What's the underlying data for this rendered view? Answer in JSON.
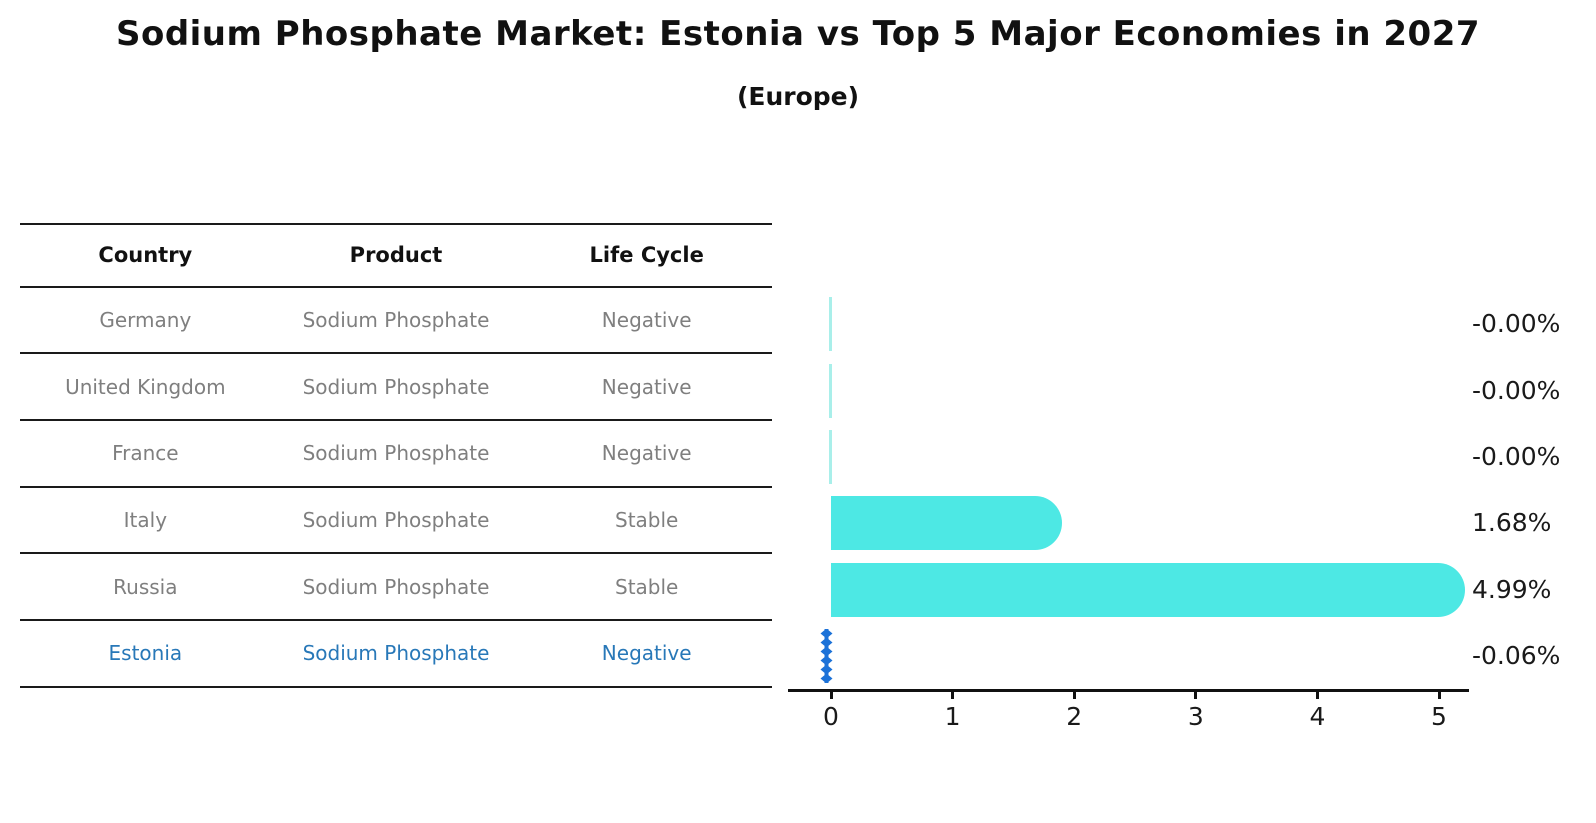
{
  "title": "Sodium Phosphate Market: Estonia vs Top 5 Major Economies in 2027",
  "subtitle": "(Europe)",
  "table": {
    "headers": [
      "Country",
      "Product",
      "Life Cycle"
    ],
    "rows": [
      {
        "country": "Germany",
        "product": "Sodium Phosphate",
        "life_cycle": "Negative",
        "highlight": false
      },
      {
        "country": "United Kingdom",
        "product": "Sodium Phosphate",
        "life_cycle": "Negative",
        "highlight": false
      },
      {
        "country": "France",
        "product": "Sodium Phosphate",
        "life_cycle": "Negative",
        "highlight": false
      },
      {
        "country": "Italy",
        "product": "Sodium Phosphate",
        "life_cycle": "Stable",
        "highlight": false
      },
      {
        "country": "Russia",
        "product": "Sodium Phosphate",
        "life_cycle": "Stable",
        "highlight": false
      },
      {
        "country": "Estonia",
        "product": "Sodium Phosphate",
        "life_cycle": "Negative",
        "highlight": true
      }
    ]
  },
  "chart_data": {
    "type": "bar",
    "orientation": "horizontal",
    "title": "Sodium Phosphate Market: Estonia vs Top 5 Major Economies in 2027 (Europe)",
    "categories": [
      "Germany",
      "United Kingdom",
      "France",
      "Italy",
      "Russia",
      "Estonia"
    ],
    "values": [
      -0.0,
      -0.0,
      -0.0,
      1.68,
      4.99,
      -0.06
    ],
    "value_labels": [
      "-0.00%",
      "-0.00%",
      "-0.00%",
      "1.68%",
      "4.99%",
      "-0.06%"
    ],
    "x_ticks": [
      0,
      1,
      2,
      3,
      4,
      5
    ],
    "xlim": [
      -0.35,
      5.25
    ],
    "grid": false,
    "legend": null,
    "highlight_index": 5,
    "colors": {
      "bar": "#4DE8E4",
      "zero_bar": "#A9EFEA",
      "highlight_bar": "#1C72D8",
      "highlight_text": "#2878b8",
      "row_text": "#7f7f7f",
      "axis": "#111111"
    }
  }
}
